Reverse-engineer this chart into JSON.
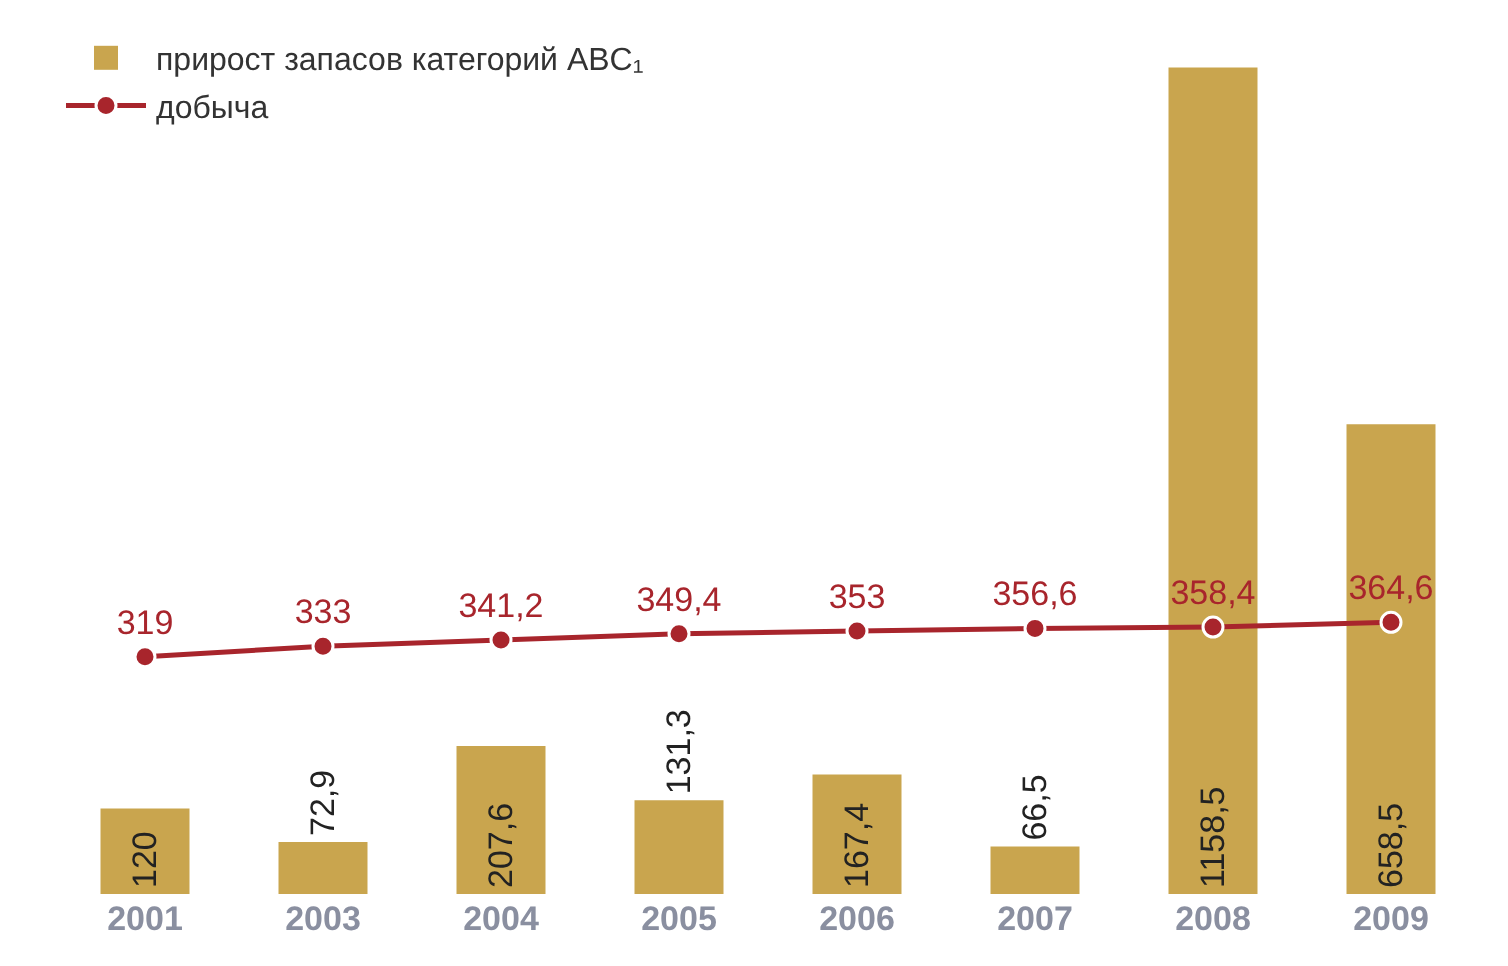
{
  "chart_data": {
    "type": "bar",
    "categories": [
      "2001",
      "2003",
      "2004",
      "2005",
      "2006",
      "2007",
      "2008",
      "2009"
    ],
    "legend": "top left",
    "series": [
      {
        "name": "прирост запасов категорий ABC₁",
        "color": "#c9a54e",
        "values": [
          120,
          72.9,
          207.6,
          131.3,
          167.4,
          66.5,
          1158.5,
          658.5
        ],
        "value_labels": [
          "120",
          "72,9",
          "207,6",
          "131,3",
          "167,4",
          "66,5",
          "1158,5",
          "658,5"
        ]
      },
      {
        "name": "добыча",
        "type": "line",
        "axis": "y2",
        "color": "#a8252c",
        "marker": "circle",
        "values": [
          319,
          333,
          341.2,
          349.4,
          353,
          356.6,
          358.4,
          364.6
        ],
        "value_labels": [
          "319",
          "333",
          "341,2",
          "349,4",
          "353",
          "356,6",
          "358,4",
          "364,6"
        ]
      }
    ],
    "grid": false,
    "tick_labels": "x"
  }
}
